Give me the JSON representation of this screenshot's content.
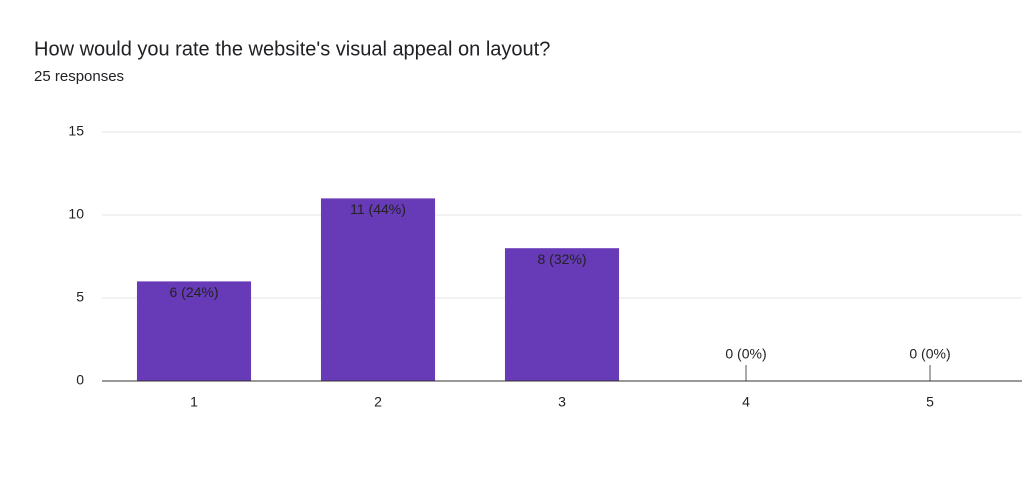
{
  "chart_data": {
    "type": "bar",
    "title": "How would you rate the website's visual appeal on layout?",
    "subtitle": "25 responses",
    "categories": [
      "1",
      "2",
      "3",
      "4",
      "5"
    ],
    "values": [
      6,
      11,
      8,
      0,
      0
    ],
    "value_labels": [
      "6 (24%)",
      "11 (44%)",
      "8 (32%)",
      "0 (0%)",
      "0 (0%)"
    ],
    "color": "#673ab7",
    "ylim": [
      0,
      15
    ],
    "yticks": [
      0,
      5,
      10,
      15
    ],
    "grid": true
  }
}
